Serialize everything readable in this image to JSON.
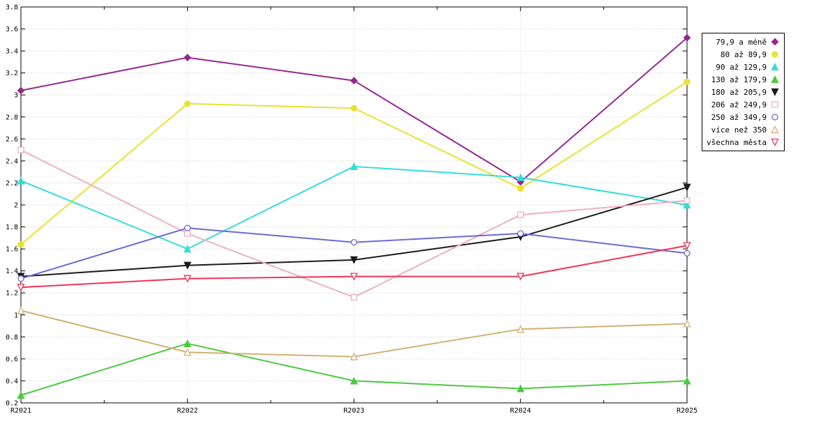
{
  "chart_data": {
    "type": "line",
    "x": [
      "R2021",
      "R2022",
      "R2023",
      "R2024",
      "R2025"
    ],
    "ylim": [
      0.2,
      3.8
    ],
    "ytick_step": 0.2,
    "grid": true,
    "legend_position": "top-right",
    "title": "",
    "xlabel": "",
    "ylabel": "",
    "series": [
      {
        "name": "79,9 a méně",
        "color": "#94278F",
        "marker": "diamond",
        "values": [
          3.04,
          3.34,
          3.13,
          2.21,
          3.52
        ]
      },
      {
        "name": "80 až 89,9",
        "color": "#E8E330",
        "marker": "circle",
        "values": [
          1.64,
          2.92,
          2.88,
          2.15,
          3.12
        ]
      },
      {
        "name": "90 až 129,9",
        "color": "#33DDDD",
        "marker": "triangle-up",
        "values": [
          2.22,
          1.6,
          2.35,
          2.25,
          2.0
        ]
      },
      {
        "name": "130 až 179,9",
        "color": "#4DC93F",
        "marker": "triangle-up",
        "values": [
          0.27,
          0.74,
          0.4,
          0.33,
          0.4
        ]
      },
      {
        "name": "180 až 205,9",
        "color": "#1A1A1A",
        "marker": "triangle-down",
        "values": [
          1.35,
          1.45,
          1.5,
          1.71,
          2.16
        ]
      },
      {
        "name": "206 až 249,9",
        "color": "#F0AFC0",
        "marker": "open-square",
        "values": [
          2.5,
          1.74,
          1.16,
          1.91,
          2.04
        ]
      },
      {
        "name": "250 až 349,9",
        "color": "#6A6AD6",
        "marker": "open-circle",
        "values": [
          1.33,
          1.79,
          1.66,
          1.74,
          1.56
        ]
      },
      {
        "name": "více než 350",
        "color": "#D2B074",
        "marker": "open-triangle-up",
        "values": [
          1.04,
          0.66,
          0.62,
          0.87,
          0.92
        ]
      },
      {
        "name": "všechna města",
        "color": "#F03355",
        "marker": "open-triangle-down",
        "values": [
          1.25,
          1.33,
          1.35,
          1.35,
          1.63
        ]
      }
    ]
  }
}
